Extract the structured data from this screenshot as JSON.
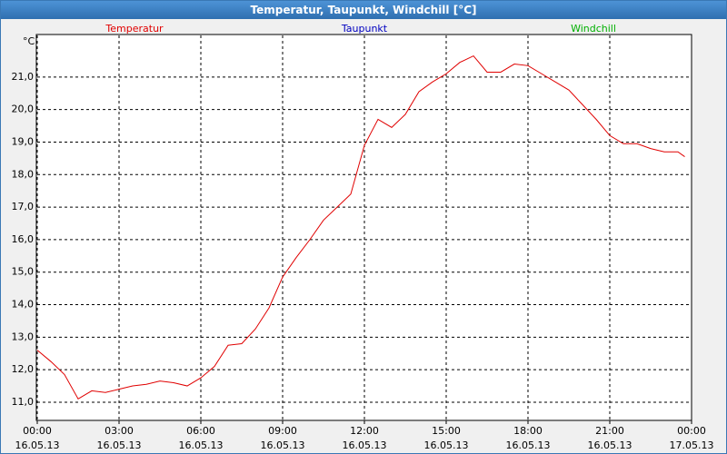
{
  "window_title": "Temperatur, Taupunkt, Windchill [°C]",
  "chart_data": {
    "type": "line",
    "y_unit": "°C",
    "x": [
      0,
      0.5,
      1,
      1.5,
      2,
      2.5,
      3,
      3.5,
      4,
      4.5,
      5,
      5.5,
      6,
      6.5,
      7,
      7.5,
      8,
      8.5,
      9,
      9.5,
      10,
      10.5,
      11,
      11.5,
      12,
      12.5,
      13,
      13.5,
      14,
      14.5,
      15,
      15.5,
      16,
      16.5,
      17,
      17.5,
      18,
      18.5,
      19,
      19.5,
      20,
      20.5,
      21,
      21.5,
      22,
      22.5,
      23,
      23.5,
      23.75
    ],
    "series": [
      {
        "name": "Temperatur",
        "color": "#e00000",
        "values": [
          12.6,
          12.25,
          11.85,
          11.1,
          11.35,
          11.3,
          11.4,
          11.5,
          11.55,
          11.65,
          11.6,
          11.5,
          11.75,
          12.1,
          12.75,
          12.8,
          13.25,
          13.9,
          14.85,
          15.45,
          16.0,
          16.6,
          17.0,
          17.4,
          18.9,
          19.7,
          19.45,
          19.85,
          20.55,
          20.85,
          21.1,
          21.45,
          21.65,
          21.15,
          21.15,
          21.4,
          21.35,
          21.1,
          20.85,
          20.6,
          20.15,
          19.7,
          19.2,
          18.95,
          18.95,
          18.8,
          18.7,
          18.7,
          18.55
        ]
      },
      {
        "name": "Taupunkt",
        "color": "#0000c0",
        "values": [
          null,
          null,
          null,
          null,
          null,
          null,
          null,
          null,
          null,
          null,
          null,
          null,
          null,
          null,
          null,
          null,
          null,
          null,
          null,
          null,
          null,
          null,
          null,
          null,
          null,
          null,
          null,
          null,
          null,
          null,
          null,
          null,
          null,
          null,
          null,
          null,
          null,
          null,
          null,
          null,
          null,
          null,
          null,
          null,
          null,
          null,
          null,
          null,
          null
        ]
      },
      {
        "name": "Windchill",
        "color": "#00b000",
        "values": [
          null,
          null,
          null,
          null,
          null,
          null,
          null,
          null,
          null,
          null,
          null,
          null,
          null,
          null,
          null,
          null,
          null,
          null,
          null,
          null,
          null,
          null,
          null,
          null,
          null,
          null,
          null,
          null,
          null,
          null,
          null,
          null,
          null,
          null,
          null,
          null,
          null,
          null,
          null,
          null,
          null,
          null,
          null,
          null,
          null,
          null,
          null,
          null,
          null
        ]
      }
    ],
    "xlim": [
      0,
      24
    ],
    "xticks": [
      {
        "value": 0,
        "label": "00:00\n16.05.13"
      },
      {
        "value": 3,
        "label": "03:00\n16.05.13"
      },
      {
        "value": 6,
        "label": "06:00\n16.05.13"
      },
      {
        "value": 9,
        "label": "09:00\n16.05.13"
      },
      {
        "value": 12,
        "label": "12:00\n16.05.13"
      },
      {
        "value": 15,
        "label": "15:00\n16.05.13"
      },
      {
        "value": 18,
        "label": "18:00\n16.05.13"
      },
      {
        "value": 21,
        "label": "21:00\n16.05.13"
      },
      {
        "value": 24,
        "label": "00:00\n17.05.13"
      }
    ],
    "ylim": [
      10.44,
      22.28
    ],
    "yticks": [
      {
        "value": 11,
        "label": "11,0"
      },
      {
        "value": 12,
        "label": "12,0"
      },
      {
        "value": 13,
        "label": "13,0"
      },
      {
        "value": 14,
        "label": "14,0"
      },
      {
        "value": 15,
        "label": "15,0"
      },
      {
        "value": 16,
        "label": "16,0"
      },
      {
        "value": 17,
        "label": "17,0"
      },
      {
        "value": 18,
        "label": "18,0"
      },
      {
        "value": 19,
        "label": "19,0"
      },
      {
        "value": 20,
        "label": "20,0"
      },
      {
        "value": 21,
        "label": "21,0"
      }
    ],
    "grid": true
  }
}
